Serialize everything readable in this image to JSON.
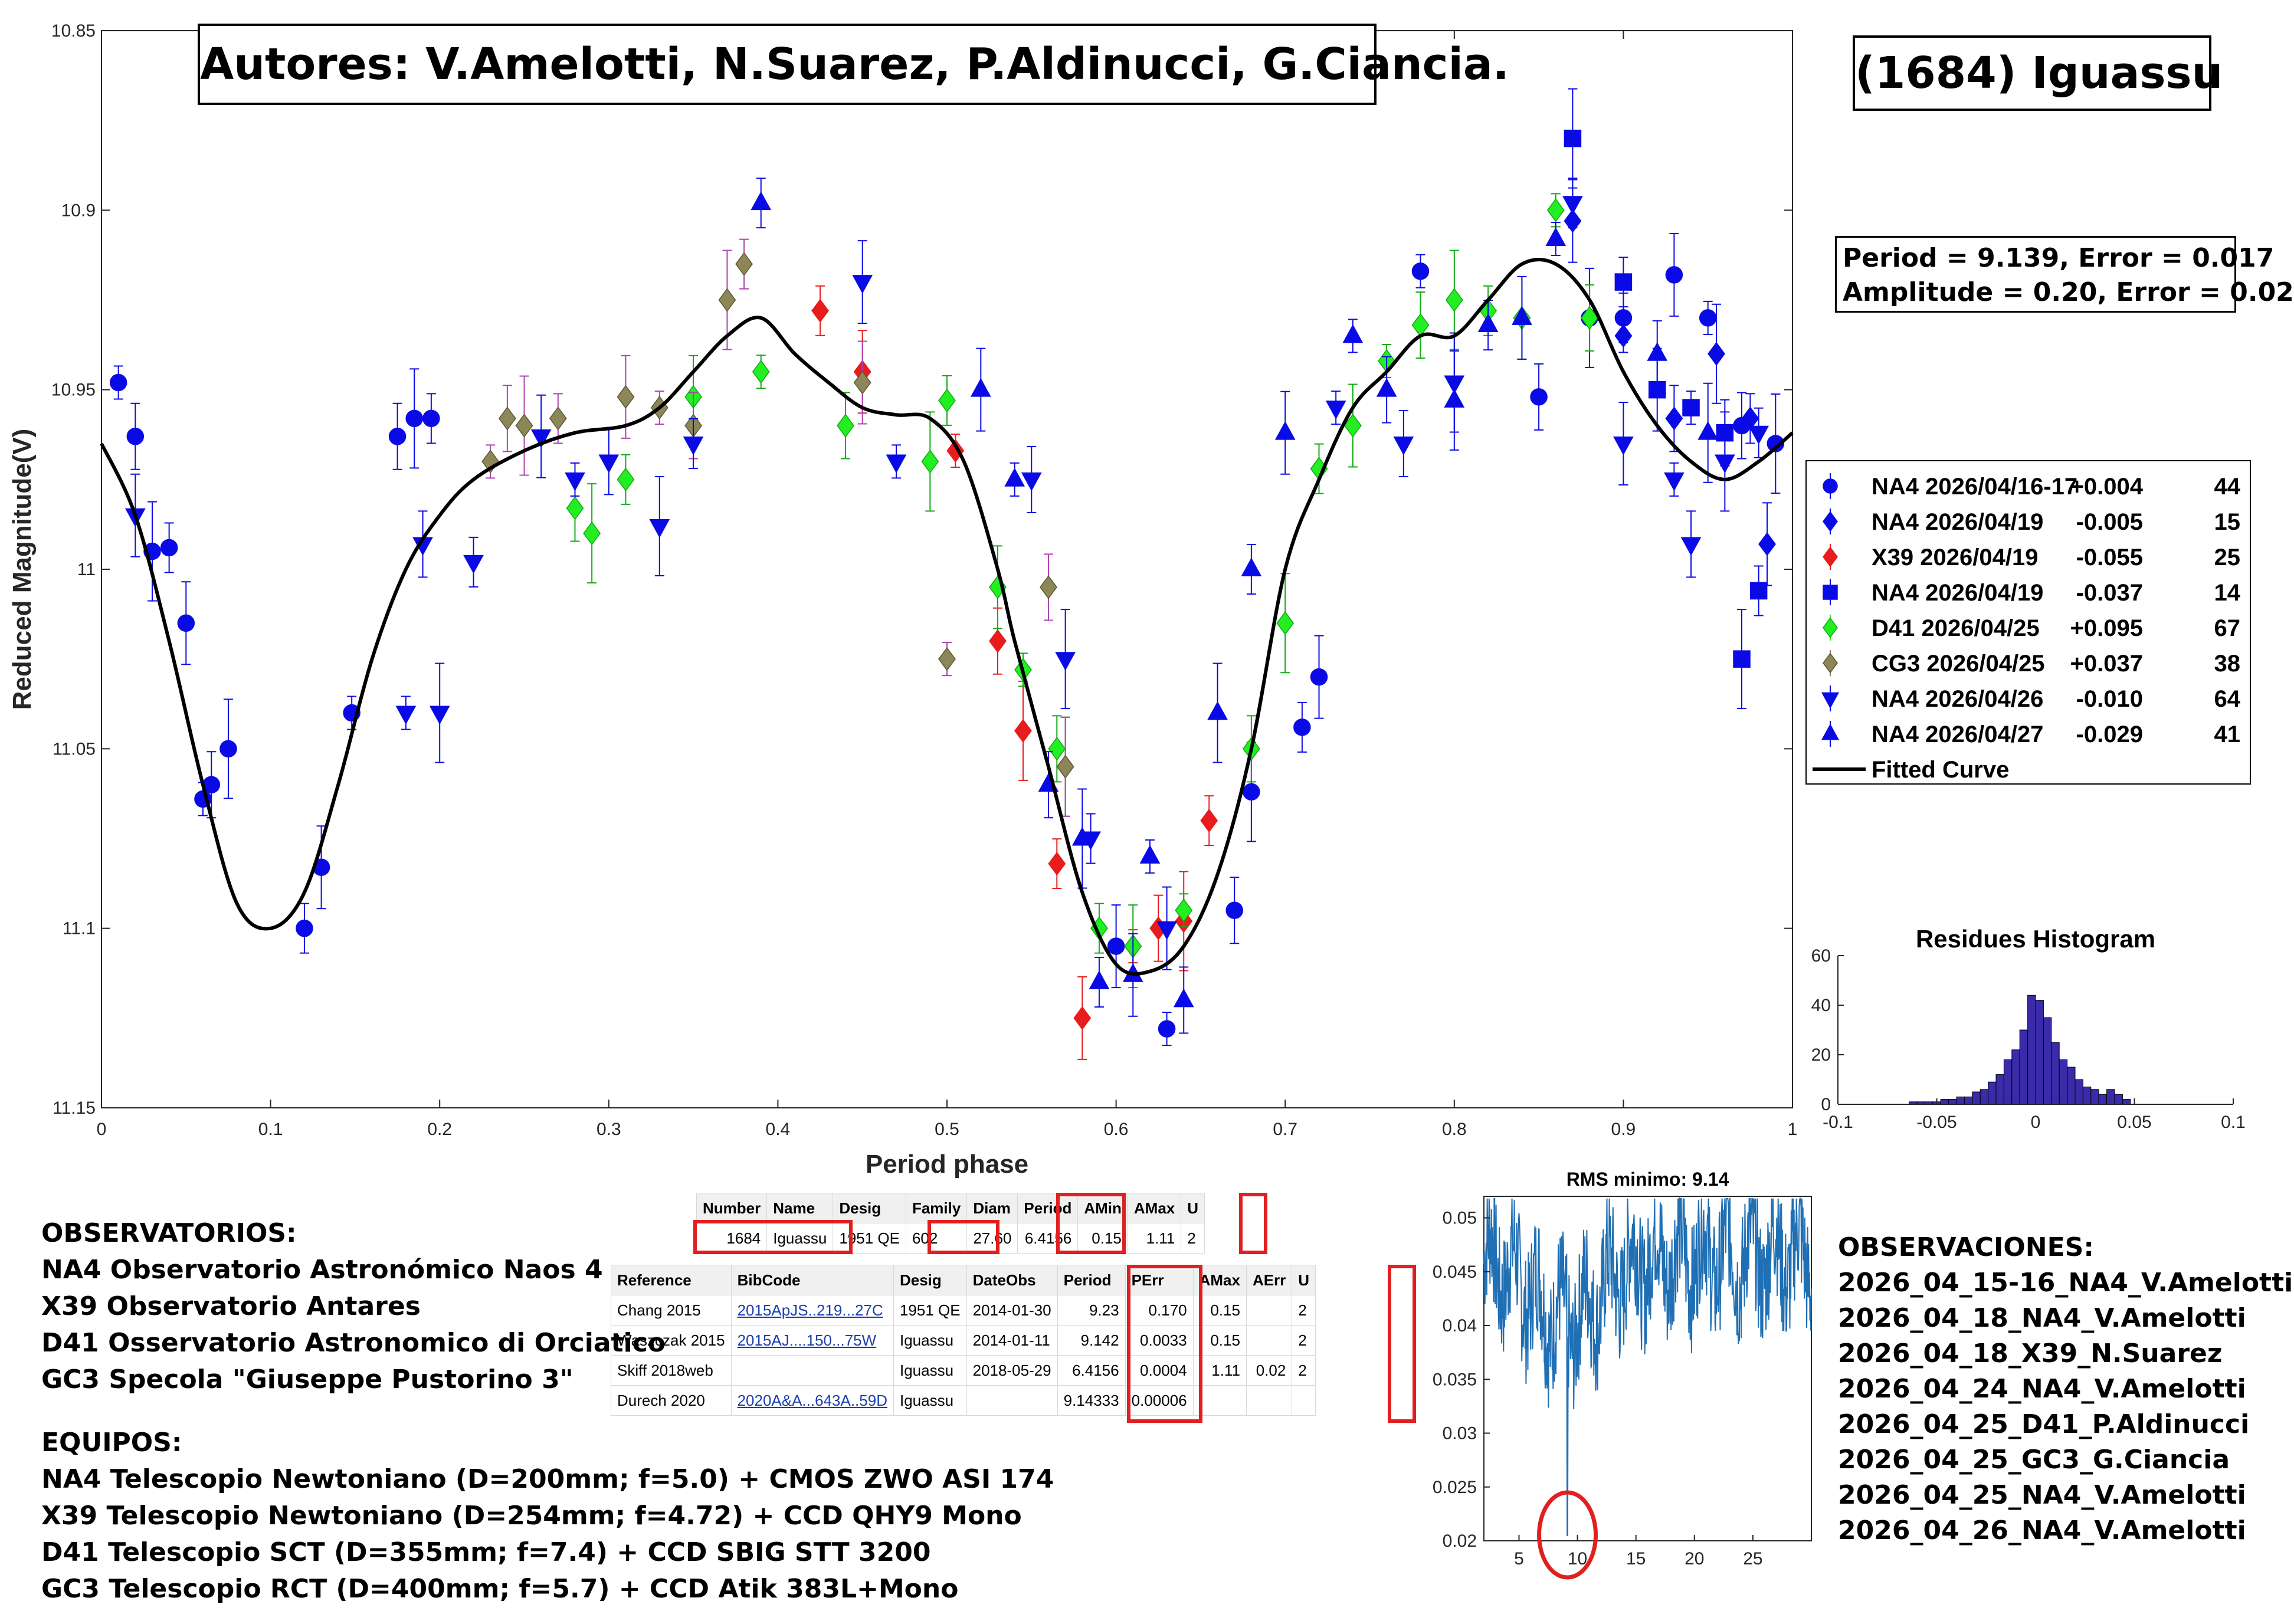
{
  "title_box": {
    "authors": "Autores: V.Amelotti, N.Suarez, P.Aldinucci, G.Ciancia.",
    "object": "(1684) Iguassu"
  },
  "stats_box": {
    "line1": "Period =  9.139, Error = 0.017",
    "line2": "Amplitude = 0.20, Error = 0.02"
  },
  "legend": {
    "items": [
      {
        "label": "NA4 2026/04/16-17",
        "offset": "+0.004",
        "count": "44",
        "marker": "circle",
        "color": "#0a0ae6"
      },
      {
        "label": "NA4 2026/04/19",
        "offset": "-0.005",
        "count": "15",
        "marker": "diamond",
        "color": "#0a0ae6"
      },
      {
        "label": "X39 2026/04/19",
        "offset": "-0.055",
        "count": "25",
        "marker": "diamond",
        "color": "#e81c1c"
      },
      {
        "label": "NA4 2026/04/19",
        "offset": "-0.037",
        "count": "14",
        "marker": "square",
        "color": "#0a0ae6"
      },
      {
        "label": "D41 2026/04/25",
        "offset": "+0.095",
        "count": "67",
        "marker": "diamond",
        "color": "#22ee22"
      },
      {
        "label": "CG3 2026/04/25",
        "offset": "+0.037",
        "count": "38",
        "marker": "diamond",
        "color": "#8c8658"
      },
      {
        "label": "NA4 2026/04/26",
        "offset": "-0.010",
        "count": "64",
        "marker": "triangle-down",
        "color": "#0a0ae6"
      },
      {
        "label": "NA4 2026/04/27",
        "offset": "-0.029",
        "count": "41",
        "marker": "triangle-up",
        "color": "#0a0ae6"
      }
    ],
    "fit_label": "Fitted Curve"
  },
  "chart_data": [
    {
      "id": "lightcurve",
      "type": "scatter",
      "xlabel": "Period phase",
      "ylabel": "Reduced Magnitude(V)",
      "xlim": [
        0,
        1
      ],
      "ylim": [
        10.85,
        11.15
      ],
      "y_reversed": true,
      "x_ticks": [
        "0",
        "0.1",
        "0.2",
        "0.3",
        "0.4",
        "0.5",
        "0.6",
        "0.7",
        "0.8",
        "0.9",
        "1"
      ],
      "y_ticks": [
        "10.85",
        "10.9",
        "10.95",
        "11",
        "11.05",
        "11.1",
        "11.15"
      ],
      "grid": false,
      "fit_curve": {
        "name": "Fitted Curve",
        "x": [
          0,
          0.02,
          0.04,
          0.06,
          0.08,
          0.1,
          0.12,
          0.14,
          0.16,
          0.18,
          0.2,
          0.22,
          0.25,
          0.28,
          0.31,
          0.33,
          0.35,
          0.37,
          0.39,
          0.41,
          0.43,
          0.45,
          0.47,
          0.49,
          0.51,
          0.53,
          0.54,
          0.56,
          0.58,
          0.6,
          0.62,
          0.64,
          0.66,
          0.68,
          0.7,
          0.72,
          0.74,
          0.76,
          0.78,
          0.8,
          0.82,
          0.84,
          0.86,
          0.88,
          0.9,
          0.92,
          0.94,
          0.96,
          0.98,
          1.0
        ],
        "y": [
          10.965,
          10.985,
          11.02,
          11.06,
          11.093,
          11.1,
          11.09,
          11.06,
          11.025,
          11.0,
          10.985,
          10.975,
          10.967,
          10.962,
          10.96,
          10.955,
          10.945,
          10.935,
          10.93,
          10.94,
          10.948,
          10.955,
          10.957,
          10.958,
          10.97,
          11.0,
          11.02,
          11.055,
          11.09,
          11.11,
          11.112,
          11.105,
          11.085,
          11.05,
          11.0,
          10.975,
          10.955,
          10.945,
          10.935,
          10.935,
          10.925,
          10.915,
          10.915,
          10.925,
          10.945,
          10.96,
          10.97,
          10.975,
          10.97,
          10.962
        ]
      },
      "series": [
        {
          "name": "NA4 2026/04/16-17",
          "marker": "circle",
          "color": "#0a0ae6",
          "x": [
            0.01,
            0.02,
            0.03,
            0.04,
            0.05,
            0.06,
            0.065,
            0.075,
            0.12,
            0.13,
            0.148,
            0.175,
            0.185,
            0.195,
            0.6,
            0.63,
            0.67,
            0.68,
            0.71,
            0.72,
            0.78,
            0.85,
            0.88,
            0.9,
            0.93,
            0.95,
            0.97,
            0.99
          ],
          "y": [
            10.948,
            10.963,
            10.995,
            10.994,
            11.015,
            11.064,
            11.06,
            11.05,
            11.1,
            11.083,
            11.04,
            10.963,
            10.958,
            10.958,
            11.105,
            11.128,
            11.095,
            11.062,
            11.044,
            11.03,
            10.917,
            10.952,
            10.93,
            10.93,
            10.918,
            10.93,
            10.96,
            10.965
          ]
        },
        {
          "name": "NA4 2026/04/19",
          "marker": "diamond",
          "color": "#0a0ae6",
          "x": [
            0.87,
            0.9,
            0.93,
            0.955,
            0.975,
            0.985
          ],
          "y": [
            10.903,
            10.935,
            10.958,
            10.94,
            10.958,
            10.993
          ]
        },
        {
          "name": "X39 2026/04/19",
          "marker": "diamond",
          "color": "#e81c1c",
          "x": [
            0.425,
            0.45,
            0.505,
            0.53,
            0.545,
            0.565,
            0.58,
            0.61,
            0.625,
            0.64,
            0.655
          ],
          "y": [
            10.928,
            10.945,
            10.967,
            11.02,
            11.045,
            11.082,
            11.125,
            11.105,
            11.1,
            11.098,
            11.07
          ]
        },
        {
          "name": "NA4 2026/04/19",
          "marker": "square",
          "color": "#0a0ae6",
          "x": [
            0.87,
            0.9,
            0.92,
            0.94,
            0.96,
            0.97,
            0.98
          ],
          "y": [
            10.88,
            10.92,
            10.95,
            10.955,
            10.962,
            11.025,
            11.006
          ]
        },
        {
          "name": "D41 2026/04/25",
          "marker": "diamond",
          "color": "#22ee22",
          "x": [
            0.28,
            0.29,
            0.31,
            0.35,
            0.39,
            0.44,
            0.49,
            0.5,
            0.53,
            0.545,
            0.565,
            0.57,
            0.59,
            0.61,
            0.64,
            0.68,
            0.7,
            0.72,
            0.74,
            0.76,
            0.78,
            0.8,
            0.82,
            0.84,
            0.86,
            0.88
          ],
          "y": [
            10.983,
            10.99,
            10.975,
            10.952,
            10.945,
            10.96,
            10.97,
            10.953,
            11.005,
            11.028,
            11.05,
            11.055,
            11.1,
            11.105,
            11.095,
            11.05,
            11.015,
            10.972,
            10.96,
            10.942,
            10.932,
            10.925,
            10.928,
            10.93,
            10.9,
            10.93
          ]
        },
        {
          "name": "CG3 2026/04/25",
          "marker": "diamond",
          "color": "#8c8658",
          "x": [
            0.23,
            0.24,
            0.25,
            0.27,
            0.31,
            0.33,
            0.35,
            0.37,
            0.38,
            0.45,
            0.5,
            0.56,
            0.57
          ],
          "y": [
            10.97,
            10.958,
            10.96,
            10.958,
            10.952,
            10.955,
            10.96,
            10.925,
            10.915,
            10.948,
            11.025,
            11.005,
            11.055
          ]
        },
        {
          "name": "NA4 2026/04/26",
          "marker": "triangle-down",
          "color": "#0a0ae6",
          "x": [
            0.02,
            0.18,
            0.19,
            0.2,
            0.22,
            0.26,
            0.28,
            0.3,
            0.33,
            0.35,
            0.45,
            0.47,
            0.55,
            0.57,
            0.585,
            0.63,
            0.73,
            0.77,
            0.8,
            0.87,
            0.9,
            0.93,
            0.94,
            0.96,
            0.98
          ],
          "y": [
            10.985,
            11.04,
            10.993,
            11.04,
            10.998,
            10.963,
            10.975,
            10.97,
            10.988,
            10.965,
            10.92,
            10.97,
            10.975,
            11.025,
            11.075,
            11.1,
            10.955,
            10.965,
            10.948,
            10.898,
            10.965,
            10.975,
            10.993,
            10.97,
            10.962
          ]
        },
        {
          "name": "NA4 2026/04/27",
          "marker": "triangle-up",
          "color": "#0a0ae6",
          "x": [
            0.39,
            0.52,
            0.54,
            0.56,
            0.58,
            0.59,
            0.61,
            0.62,
            0.64,
            0.66,
            0.68,
            0.7,
            0.74,
            0.76,
            0.8,
            0.82,
            0.84,
            0.86,
            0.92,
            0.95
          ],
          "y": [
            10.898,
            10.95,
            10.975,
            11.06,
            11.075,
            11.115,
            11.113,
            11.08,
            11.12,
            11.04,
            11.0,
            10.962,
            10.935,
            10.95,
            10.953,
            10.932,
            10.93,
            10.908,
            10.94,
            10.962
          ]
        }
      ]
    },
    {
      "id": "histogram",
      "type": "bar",
      "title": "Residues Histogram",
      "xlim": [
        -0.1,
        0.1
      ],
      "ylim": [
        0,
        60
      ],
      "x_ticks": [
        "-0.1",
        "-0.05",
        "0",
        "0.05",
        "0.1"
      ],
      "y_ticks": [
        "0",
        "20",
        "40",
        "60"
      ],
      "bin_width": 0.004,
      "bin_centers": [
        -0.062,
        -0.058,
        -0.054,
        -0.05,
        -0.046,
        -0.042,
        -0.038,
        -0.034,
        -0.03,
        -0.026,
        -0.022,
        -0.018,
        -0.014,
        -0.01,
        -0.006,
        -0.002,
        0.002,
        0.006,
        0.01,
        0.014,
        0.018,
        0.022,
        0.026,
        0.03,
        0.034,
        0.038,
        0.042,
        0.046
      ],
      "counts": [
        1,
        1,
        1,
        1,
        2,
        2,
        3,
        3,
        5,
        6,
        9,
        12,
        18,
        22,
        30,
        44,
        42,
        35,
        25,
        18,
        15,
        10,
        7,
        6,
        4,
        6,
        4,
        2
      ],
      "color": "#3a2ba8"
    },
    {
      "id": "rms",
      "type": "line",
      "title": "RMS minimo: 9.14",
      "xlim": [
        2,
        30
      ],
      "ylim": [
        0.02,
        0.052
      ],
      "x_ticks": [
        "5",
        "10",
        "15",
        "20",
        "25"
      ],
      "y_ticks": [
        "0.02",
        "0.025",
        "0.03",
        "0.035",
        "0.04",
        "0.045",
        "0.05"
      ],
      "minimum_x": 9.14,
      "minimum_y": 0.0205,
      "color": "#1f6fb4"
    }
  ],
  "table_top": {
    "headers": [
      "Number",
      "Name",
      "Desig",
      "Family",
      "Diam",
      "Period",
      "AMin",
      "AMax",
      "U"
    ],
    "row": [
      "1684",
      "Iguassu",
      "1951 QE",
      "602",
      "27.60",
      "6.4156",
      "0.15",
      "1.11",
      "2"
    ]
  },
  "table_ref": {
    "headers": [
      "Reference",
      "BibCode",
      "Desig",
      "DateObs",
      "Period",
      "PErr",
      "AMax",
      "AErr",
      "U"
    ],
    "rows": [
      [
        "Chang 2015",
        "2015ApJS..219...27C",
        "1951 QE",
        "2014-01-30",
        "9.23",
        "0.170",
        "0.15",
        "",
        "2"
      ],
      [
        "Waszczak 2015",
        "2015AJ....150...75W",
        "Iguassu",
        "2014-01-11",
        "9.142",
        "0.0033",
        "0.15",
        "",
        "2"
      ],
      [
        "Skiff 2018web",
        "",
        "Iguassu",
        "2018-05-29",
        "6.4156",
        "0.0004",
        "1.11",
        "0.02",
        "2"
      ],
      [
        "Durech 2020",
        "2020A&A...643A..59D",
        "Iguassu",
        "",
        "9.14333",
        "0.00006",
        "",
        "",
        ""
      ]
    ]
  },
  "observatorios": {
    "heading": "OBSERVATORIOS:",
    "items": [
      "NA4 Observatorio Astronómico Naos 4",
      "X39 Observatorio Antares",
      "D41 Osservatorio Astronomico di Orciatico",
      "GC3 Specola \"Giuseppe Pustorino 3\""
    ]
  },
  "equipos": {
    "heading": "EQUIPOS:",
    "items": [
      "NA4 Telescopio Newtoniano (D=200mm; f=5.0) + CMOS ZWO ASI 174",
      "X39 Telescopio Newtoniano (D=254mm; f=4.72) + CCD QHY9 Mono",
      "D41 Telescopio SCT (D=355mm; f=7.4) + CCD SBIG STT 3200",
      "GC3 Telescopio RCT (D=400mm; f=5.7) + CCD Atik 383L+Mono"
    ]
  },
  "observaciones": {
    "heading": "OBSERVACIONES:",
    "items": [
      "2026_04_15-16_NA4_V.Amelotti",
      "2026_04_18_NA4_V.Amelotti",
      "2026_04_18_X39_N.Suarez",
      "2026_04_24_NA4_V.Amelotti",
      "2026_04_25_D41_P.Aldinucci",
      "2026_04_25_GC3_G.Ciancia",
      "2026_04_25_NA4_V.Amelotti",
      "2026_04_26_NA4_V.Amelotti"
    ]
  }
}
